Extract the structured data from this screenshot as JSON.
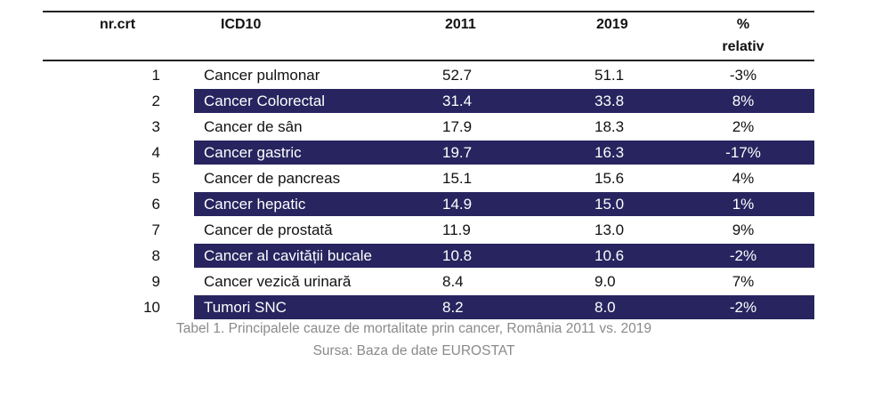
{
  "colors": {
    "band": "#27245f",
    "band_text": "#ffffff",
    "caption": "#8a8a8a"
  },
  "headers": {
    "nr": "nr.crt",
    "icd": "ICD10",
    "y2011": "2011",
    "y2019": "2019",
    "pct_line1": "%",
    "pct_line2": "relativ"
  },
  "rows": [
    {
      "nr": "1",
      "name": "Cancer pulmonar",
      "v2011": "52.7",
      "v2019": "51.1",
      "pct": "-3%",
      "dark": false
    },
    {
      "nr": "2",
      "name": "Cancer Colorectal",
      "v2011": "31.4",
      "v2019": "33.8",
      "pct": "8%",
      "dark": true
    },
    {
      "nr": "3",
      "name": "Cancer de sân",
      "v2011": "17.9",
      "v2019": "18.3",
      "pct": "2%",
      "dark": false
    },
    {
      "nr": "4",
      "name": "Cancer gastric",
      "v2011": "19.7",
      "v2019": "16.3",
      "pct": "-17%",
      "dark": true
    },
    {
      "nr": "5",
      "name": "Cancer de pancreas",
      "v2011": "15.1",
      "v2019": "15.6",
      "pct": "4%",
      "dark": false
    },
    {
      "nr": "6",
      "name": "Cancer hepatic",
      "v2011": "14.9",
      "v2019": "15.0",
      "pct": "1%",
      "dark": true
    },
    {
      "nr": "7",
      "name": "Cancer de prostată",
      "v2011": "11.9",
      "v2019": "13.0",
      "pct": "9%",
      "dark": false
    },
    {
      "nr": "8",
      "name": "Cancer al cavității bucale",
      "v2011": "10.8",
      "v2019": "10.6",
      "pct": "-2%",
      "dark": true
    },
    {
      "nr": "9",
      "name": "Cancer vezică urinară",
      "v2011": "8.4",
      "v2019": "9.0",
      "pct": "7%",
      "dark": false
    },
    {
      "nr": "10",
      "name": "Tumori SNC",
      "v2011": "8.2",
      "v2019": "8.0",
      "pct": "-2%",
      "dark": true
    }
  ],
  "caption": {
    "line1": "Tabel 1. Principalele cauze de mortalitate prin cancer, România 2011 vs. 2019",
    "line2": "Sursa: Baza de date EUROSTAT"
  }
}
